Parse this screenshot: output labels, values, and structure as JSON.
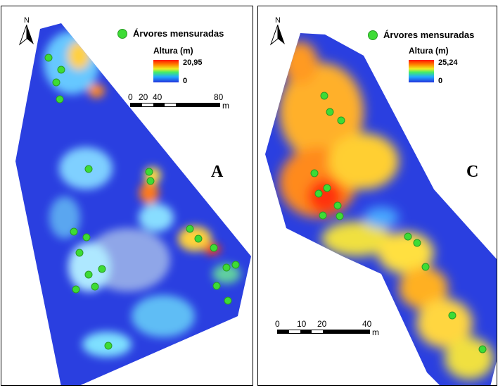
{
  "panels": [
    {
      "letter": "A",
      "north_label": "N",
      "legend": {
        "trees_label": "Árvores mensuradas",
        "height_title": "Altura (m)",
        "max": "20,95",
        "min": "0"
      },
      "scale": {
        "ticks": [
          "0",
          "20",
          "40",
          "80"
        ],
        "unit": "m"
      }
    },
    {
      "letter": "C",
      "north_label": "N",
      "legend": {
        "trees_label": "Árvores mensuradas",
        "height_title": "Altura (m)",
        "max": "25,24",
        "min": "0"
      },
      "scale": {
        "ticks": [
          "0",
          "10",
          "20",
          "40"
        ],
        "unit": "m"
      }
    }
  ],
  "colors": {
    "tree_marker": "#3ddc35",
    "low": "#2233dd",
    "high": "#ff1100"
  }
}
